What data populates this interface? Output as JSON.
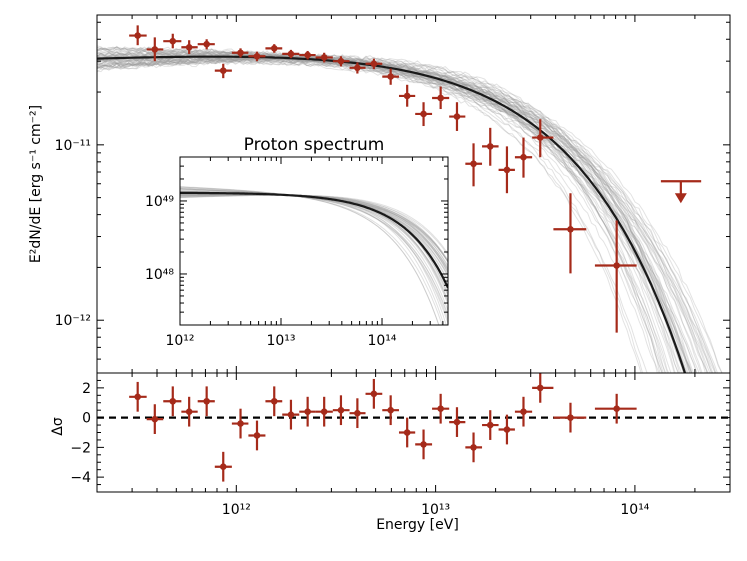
{
  "chart_data": {
    "type": "scatter",
    "colors": {
      "data": "#a52a1a",
      "model": "#1a1a1a",
      "samples": "#9a9a9a",
      "zero": "#000000"
    },
    "main": {
      "ylabel": "E²dN/dE [erg s⁻¹ cm⁻²]",
      "xlim_eV": [
        200000000000.0,
        300000000000000.0
      ],
      "ylim": [
        5e-13,
        5.5e-11
      ],
      "yticks": [
        {
          "value": 1e-12,
          "label": "10⁻¹²"
        },
        {
          "value": 1e-11,
          "label": "10⁻¹¹"
        }
      ],
      "points": [
        {
          "x": 320000000000.0,
          "y": 4.2e-11,
          "xlo": 290000000000.0,
          "xhi": 355000000000.0,
          "ylo": 3.7e-11,
          "yhi": 4.8e-11
        },
        {
          "x": 390000000000.0,
          "y": 3.5e-11,
          "xlo": 355000000000.0,
          "xhi": 430000000000.0,
          "ylo": 3e-11,
          "yhi": 4.1e-11
        },
        {
          "x": 480000000000.0,
          "y": 3.9e-11,
          "xlo": 430000000000.0,
          "xhi": 530000000000.0,
          "ylo": 3.55e-11,
          "yhi": 4.3e-11
        },
        {
          "x": 580000000000.0,
          "y": 3.6e-11,
          "xlo": 530000000000.0,
          "xhi": 640000000000.0,
          "ylo": 3.3e-11,
          "yhi": 3.95e-11
        },
        {
          "x": 710000000000.0,
          "y": 3.75e-11,
          "xlo": 640000000000.0,
          "xhi": 780000000000.0,
          "ylo": 3.5e-11,
          "yhi": 4e-11
        },
        {
          "x": 860000000000.0,
          "y": 2.65e-11,
          "xlo": 780000000000.0,
          "xhi": 950000000000.0,
          "ylo": 2.4e-11,
          "yhi": 2.9e-11
        },
        {
          "x": 1050000000000.0,
          "y": 3.35e-11,
          "xlo": 950000000000.0,
          "xhi": 1150000000000.0,
          "ylo": 3.15e-11,
          "yhi": 3.55e-11
        },
        {
          "x": 1270000000000.0,
          "y": 3.2e-11,
          "xlo": 1150000000000.0,
          "xhi": 1400000000000.0,
          "ylo": 3e-11,
          "yhi": 3.4e-11
        },
        {
          "x": 1550000000000.0,
          "y": 3.55e-11,
          "xlo": 1400000000000.0,
          "xhi": 1700000000000.0,
          "ylo": 3.35e-11,
          "yhi": 3.75e-11
        },
        {
          "x": 1880000000000.0,
          "y": 3.3e-11,
          "xlo": 1700000000000.0,
          "xhi": 2070000000000.0,
          "ylo": 3.12e-11,
          "yhi": 3.48e-11
        },
        {
          "x": 2280000000000.0,
          "y": 3.25e-11,
          "xlo": 2070000000000.0,
          "xhi": 2500000000000.0,
          "ylo": 3.07e-11,
          "yhi": 3.43e-11
        },
        {
          "x": 2760000000000.0,
          "y": 3.15e-11,
          "xlo": 2500000000000.0,
          "xhi": 3050000000000.0,
          "ylo": 2.95e-11,
          "yhi": 3.35e-11
        },
        {
          "x": 3350000000000.0,
          "y": 3e-11,
          "xlo": 3050000000000.0,
          "xhi": 3700000000000.0,
          "ylo": 2.8e-11,
          "yhi": 3.2e-11
        },
        {
          "x": 4050000000000.0,
          "y": 2.75e-11,
          "xlo": 3700000000000.0,
          "xhi": 4450000000000.0,
          "ylo": 2.55e-11,
          "yhi": 2.95e-11
        },
        {
          "x": 4900000000000.0,
          "y": 2.9e-11,
          "xlo": 4450000000000.0,
          "xhi": 5400000000000.0,
          "ylo": 2.7e-11,
          "yhi": 3.1e-11
        },
        {
          "x": 5950000000000.0,
          "y": 2.45e-11,
          "xlo": 5400000000000.0,
          "xhi": 6550000000000.0,
          "ylo": 2.2e-11,
          "yhi": 2.72e-11
        },
        {
          "x": 7200000000000.0,
          "y": 1.9e-11,
          "xlo": 6550000000000.0,
          "xhi": 7900000000000.0,
          "ylo": 1.65e-11,
          "yhi": 2.2e-11
        },
        {
          "x": 8700000000000.0,
          "y": 1.5e-11,
          "xlo": 7900000000000.0,
          "xhi": 9600000000000.0,
          "ylo": 1.28e-11,
          "yhi": 1.75e-11
        },
        {
          "x": 10600000000000.0,
          "y": 1.85e-11,
          "xlo": 9600000000000.0,
          "xhi": 11700000000000.0,
          "ylo": 1.6e-11,
          "yhi": 2.15e-11
        },
        {
          "x": 12800000000000.0,
          "y": 1.45e-11,
          "xlo": 11700000000000.0,
          "xhi": 14100000000000.0,
          "ylo": 1.2e-11,
          "yhi": 1.75e-11
        },
        {
          "x": 15500000000000.0,
          "y": 7.8e-12,
          "xlo": 14100000000000.0,
          "xhi": 17100000000000.0,
          "ylo": 5.8e-12,
          "yhi": 1.02e-11
        },
        {
          "x": 18800000000000.0,
          "y": 9.8e-12,
          "xlo": 17100000000000.0,
          "xhi": 20700000000000.0,
          "ylo": 7.6e-12,
          "yhi": 1.25e-11
        },
        {
          "x": 22800000000000.0,
          "y": 7.2e-12,
          "xlo": 20700000000000.0,
          "xhi": 25000000000000.0,
          "ylo": 5.3e-12,
          "yhi": 9.8e-12
        },
        {
          "x": 27600000000000.0,
          "y": 8.5e-12,
          "xlo": 25000000000000.0,
          "xhi": 30500000000000.0,
          "ylo": 6.5e-12,
          "yhi": 1.1e-11
        },
        {
          "x": 33500000000000.0,
          "y": 1.1e-11,
          "xlo": 30500000000000.0,
          "xhi": 39000000000000.0,
          "ylo": 8.5e-12,
          "yhi": 1.4e-11
        },
        {
          "x": 47500000000000.0,
          "y": 3.3e-12,
          "xlo": 39000000000000.0,
          "xhi": 57000000000000.0,
          "ylo": 1.85e-12,
          "yhi": 5.3e-12
        },
        {
          "x": 81000000000000.0,
          "y": 2.05e-12,
          "xlo": 63000000000000.0,
          "xhi": 102000000000000.0,
          "ylo": 8.5e-13,
          "yhi": 3.7e-12
        }
      ],
      "upper_limit": {
        "x": 170000000000000.0,
        "y": 6.2e-12,
        "xlo": 135000000000000.0,
        "xhi": 215000000000000.0
      },
      "model": {
        "norm": 3.6e-11,
        "gamma": 1.95,
        "e0_eV": 2500000000000.0,
        "e0_unit": 1000000000000.0,
        "ecut_eV": 26000000000000.0,
        "beta": 0.78
      }
    },
    "inset": {
      "title": "Proton spectrum",
      "xlim_eV": [
        1000000000000.0,
        450000000000000.0
      ],
      "ylim": [
        2e+47,
        4e+49
      ],
      "xticks": [
        {
          "value": 1000000000000.0,
          "label": "10¹²"
        },
        {
          "value": 10000000000000.0,
          "label": "10¹³"
        },
        {
          "value": 100000000000000.0,
          "label": "10¹⁴"
        }
      ],
      "yticks": [
        {
          "value": 1e+48,
          "label": "10⁴⁸"
        },
        {
          "value": 1e+49,
          "label": "10⁴⁹"
        }
      ],
      "model": {
        "peak": 1.2e+49,
        "e_peak_eV": 12000000000000.0,
        "ecut_eV": 150000000000000.0,
        "low_slope": 0.04
      }
    },
    "residuals": {
      "ylabel": "Δσ",
      "xlabel": "Energy [eV]",
      "ylim": [
        -5,
        3
      ],
      "yticks": [
        {
          "value": 2,
          "label": "2"
        },
        {
          "value": 0,
          "label": "0"
        },
        {
          "value": -2,
          "label": "−2"
        },
        {
          "value": -4,
          "label": "−4"
        }
      ],
      "xticks": [
        {
          "value": 1000000000000.0,
          "label": "10¹²"
        },
        {
          "value": 10000000000000.0,
          "label": "10¹³"
        },
        {
          "value": 100000000000000.0,
          "label": "10¹⁴"
        }
      ],
      "points": [
        {
          "x": 320000000000.0,
          "y": 1.4
        },
        {
          "x": 390000000000.0,
          "y": -0.1
        },
        {
          "x": 480000000000.0,
          "y": 1.1
        },
        {
          "x": 580000000000.0,
          "y": 0.4
        },
        {
          "x": 710000000000.0,
          "y": 1.1
        },
        {
          "x": 860000000000.0,
          "y": -3.3
        },
        {
          "x": 1050000000000.0,
          "y": -0.4
        },
        {
          "x": 1270000000000.0,
          "y": -1.2
        },
        {
          "x": 1550000000000.0,
          "y": 1.1
        },
        {
          "x": 1880000000000.0,
          "y": 0.2
        },
        {
          "x": 2280000000000.0,
          "y": 0.4
        },
        {
          "x": 2760000000000.0,
          "y": 0.4
        },
        {
          "x": 3350000000000.0,
          "y": 0.5
        },
        {
          "x": 4050000000000.0,
          "y": 0.3
        },
        {
          "x": 4900000000000.0,
          "y": 1.6
        },
        {
          "x": 5950000000000.0,
          "y": 0.5
        },
        {
          "x": 7200000000000.0,
          "y": -1.0
        },
        {
          "x": 8700000000000.0,
          "y": -1.8
        },
        {
          "x": 10600000000000.0,
          "y": 0.6
        },
        {
          "x": 12800000000000.0,
          "y": -0.3
        },
        {
          "x": 15500000000000.0,
          "y": -2.0
        },
        {
          "x": 18800000000000.0,
          "y": -0.5
        },
        {
          "x": 22800000000000.0,
          "y": -0.8
        },
        {
          "x": 27600000000000.0,
          "y": 0.4
        },
        {
          "x": 33500000000000.0,
          "y": 2.0
        },
        {
          "x": 47500000000000.0,
          "y": 0.0
        },
        {
          "x": 81000000000000.0,
          "y": 0.6
        }
      ],
      "yerr": 1.0
    }
  }
}
